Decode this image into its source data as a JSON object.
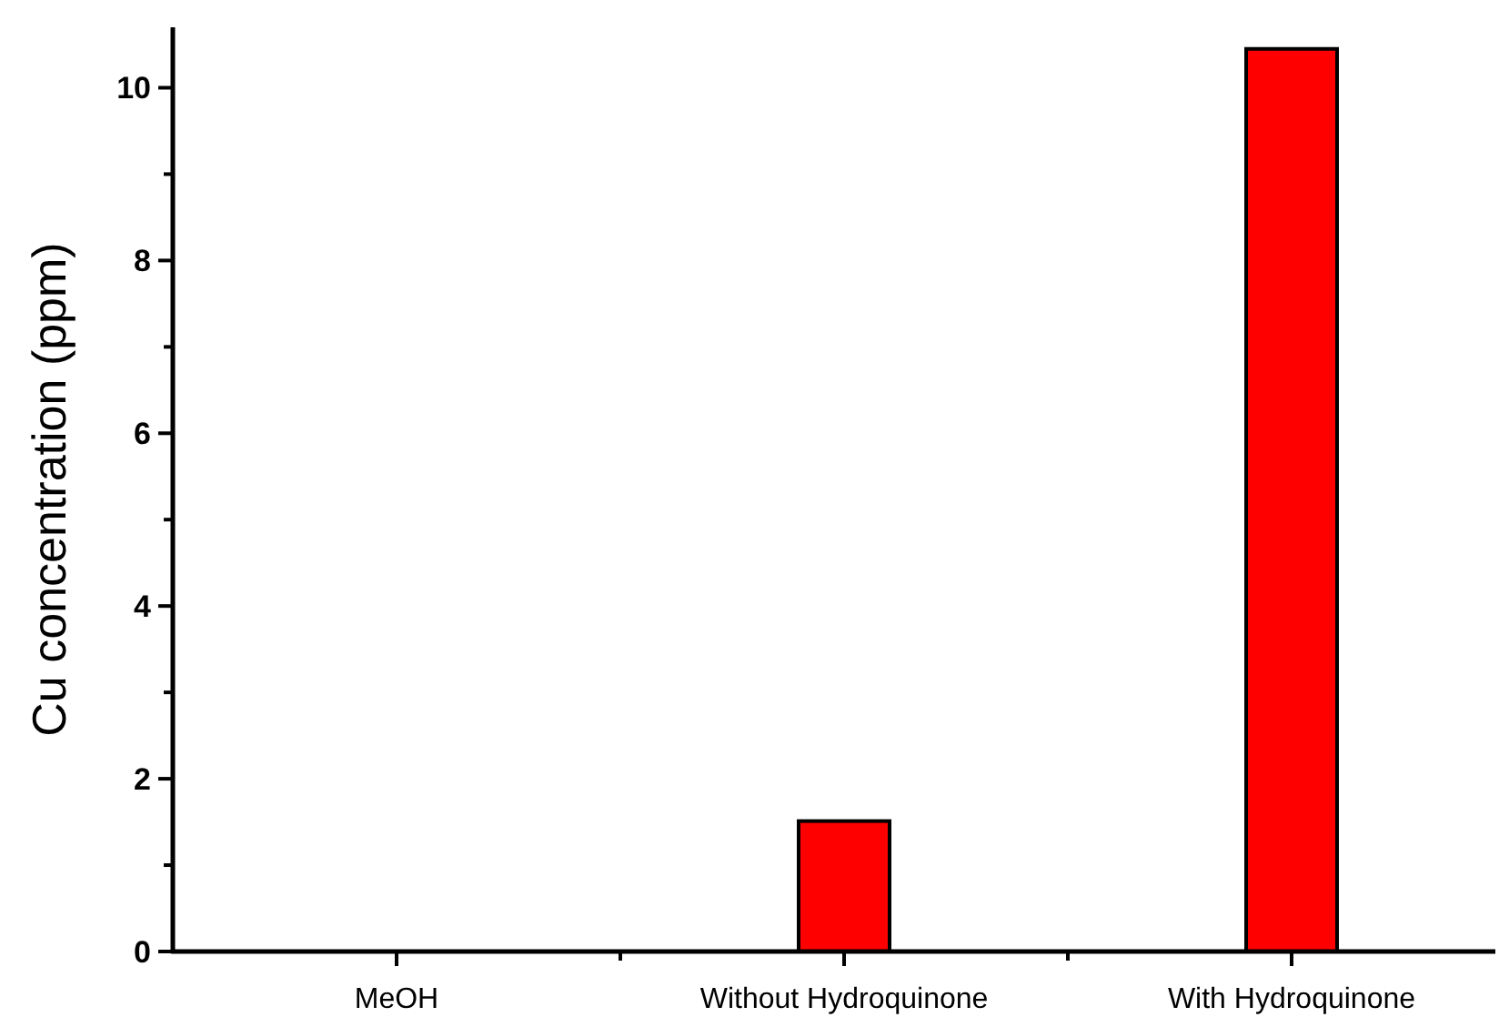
{
  "chart_data": {
    "type": "bar",
    "ylabel": "Cu concentration (ppm)",
    "categories": [
      "MeOH",
      "Without Hydroquinone",
      "With Hydroquinone"
    ],
    "values": [
      0,
      1.51,
      10.45
    ],
    "color": "#ff0000",
    "ylim": [
      0,
      10.7
    ],
    "yticks": [
      0,
      {
        "value": 1,
        "label": null
      },
      2,
      {
        "value": 3,
        "label": null
      },
      4,
      {
        "value": 5,
        "label": null
      },
      6,
      {
        "value": 7,
        "label": null
      },
      8,
      {
        "value": 9,
        "label": null
      },
      10
    ],
    "grid": false
  }
}
